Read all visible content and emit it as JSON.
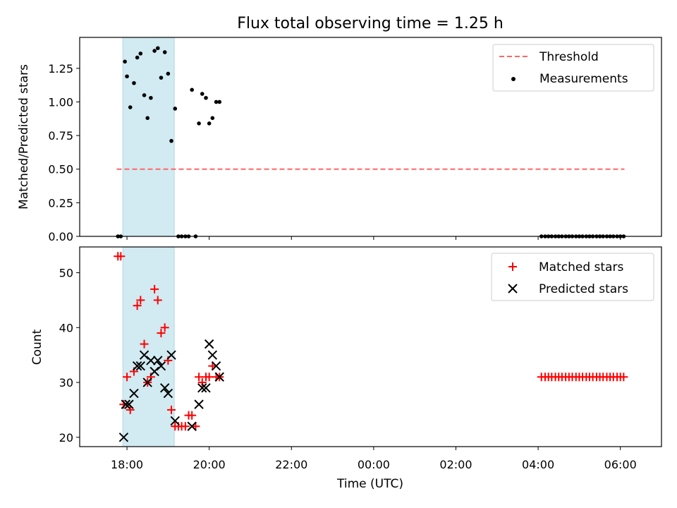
{
  "figure": {
    "title": "Flux total observing time = 1.25 h",
    "xlabel": "Time (UTC)",
    "x_tick_labels": [
      "18:00",
      "20:00",
      "22:00",
      "00:00",
      "02:00",
      "04:00",
      "06:00"
    ],
    "x_tick_hours": [
      18,
      20,
      22,
      24,
      26,
      28,
      30
    ],
    "xlim_hours": [
      16.85,
      31.0
    ],
    "shaded_span_hours": [
      17.9,
      19.15
    ],
    "colors": {
      "span": "#add8e6",
      "threshold": "#ff6666",
      "measurement": "#000000",
      "matched": "#ff0000",
      "predicted": "#000000"
    }
  },
  "chart_data": [
    {
      "type": "scatter",
      "ylabel": "Matched/Predicted stars",
      "ylim": [
        0,
        1.48
      ],
      "y_ticks": [
        0.0,
        0.25,
        0.5,
        0.75,
        1.0,
        1.25
      ],
      "y_tick_labels": [
        "0.00",
        "0.25",
        "0.50",
        "0.75",
        "1.00",
        "1.25"
      ],
      "legend": [
        "Threshold",
        "Measurements"
      ],
      "legend_position": "top-right",
      "threshold": {
        "name": "Threshold",
        "y": 0.5,
        "x_range": [
          17.75,
          30.1
        ]
      },
      "series": [
        {
          "name": "Measurements",
          "x": [
            17.78,
            17.85,
            17.95,
            18.0,
            18.08,
            18.17,
            18.25,
            18.33,
            18.42,
            18.5,
            18.58,
            18.67,
            18.75,
            18.83,
            18.92,
            19.0,
            19.08,
            19.17,
            19.25,
            19.33,
            19.42,
            19.5,
            19.58,
            19.67,
            19.75,
            19.83,
            19.92,
            20.0,
            20.08,
            20.17,
            20.25,
            28.08,
            28.17,
            28.25,
            28.33,
            28.42,
            28.5,
            28.58,
            28.67,
            28.75,
            28.83,
            28.92,
            29.0,
            29.08,
            29.17,
            29.25,
            29.33,
            29.42,
            29.5,
            29.58,
            29.67,
            29.75,
            29.83,
            29.92,
            30.0,
            30.08
          ],
          "y": [
            0.0,
            0.0,
            1.3,
            1.19,
            0.96,
            1.14,
            1.33,
            1.36,
            1.05,
            0.88,
            1.03,
            1.38,
            1.4,
            1.18,
            1.37,
            1.21,
            0.71,
            0.95,
            0.0,
            0.0,
            0.0,
            0.0,
            1.09,
            0.0,
            0.84,
            1.06,
            1.03,
            0.84,
            0.88,
            1.0,
            1.0,
            0.0,
            0.0,
            0.0,
            0.0,
            0.0,
            0.0,
            0.0,
            0.0,
            0.0,
            0.0,
            0.0,
            0.0,
            0.0,
            0.0,
            0.0,
            0.0,
            0.0,
            0.0,
            0.0,
            0.0,
            0.0,
            0.0,
            0.0,
            0.0,
            0.0
          ]
        }
      ]
    },
    {
      "type": "scatter",
      "ylabel": "Count",
      "ylim": [
        18.3,
        54.7
      ],
      "y_ticks": [
        20,
        30,
        40,
        50
      ],
      "y_tick_labels": [
        "20",
        "30",
        "40",
        "50"
      ],
      "legend": [
        "Matched stars",
        "Predicted stars"
      ],
      "legend_position": "top-right",
      "series": [
        {
          "name": "Matched stars",
          "marker": "+",
          "x": [
            17.78,
            17.85,
            17.92,
            18.0,
            18.08,
            18.17,
            18.25,
            18.33,
            18.42,
            18.5,
            18.58,
            18.67,
            18.75,
            18.83,
            18.92,
            19.0,
            19.08,
            19.17,
            19.25,
            19.33,
            19.42,
            19.5,
            19.58,
            19.67,
            19.75,
            19.83,
            19.92,
            20.0,
            20.08,
            20.17,
            20.25,
            28.08,
            28.17,
            28.25,
            28.33,
            28.42,
            28.5,
            28.58,
            28.67,
            28.75,
            28.83,
            28.92,
            29.0,
            29.08,
            29.17,
            29.25,
            29.33,
            29.42,
            29.5,
            29.58,
            29.67,
            29.75,
            29.83,
            29.92,
            30.0,
            30.08
          ],
          "y": [
            53,
            53,
            26,
            31,
            25,
            32,
            44,
            45,
            37,
            30,
            31,
            47,
            45,
            39,
            40,
            34,
            25,
            22,
            22,
            22,
            22,
            24,
            24,
            22,
            31,
            30,
            31,
            31,
            33,
            31,
            31,
            31,
            31,
            31,
            31,
            31,
            31,
            31,
            31,
            31,
            31,
            31,
            31,
            31,
            31,
            31,
            31,
            31,
            31,
            31,
            31,
            31,
            31,
            31,
            31,
            31
          ]
        },
        {
          "name": "Predicted stars",
          "marker": "x",
          "x": [
            17.92,
            17.97,
            18.05,
            18.17,
            18.25,
            18.33,
            18.42,
            18.5,
            18.58,
            18.67,
            18.75,
            18.83,
            18.92,
            19.0,
            19.08,
            19.17,
            19.58,
            19.75,
            19.83,
            19.92,
            20.0,
            20.08,
            20.17,
            20.25
          ],
          "y": [
            20,
            26,
            26,
            28,
            33,
            33,
            35,
            30,
            34,
            32,
            34,
            33,
            29,
            28,
            35,
            23,
            22,
            26,
            29,
            29,
            37,
            35,
            33,
            31
          ]
        }
      ]
    }
  ]
}
